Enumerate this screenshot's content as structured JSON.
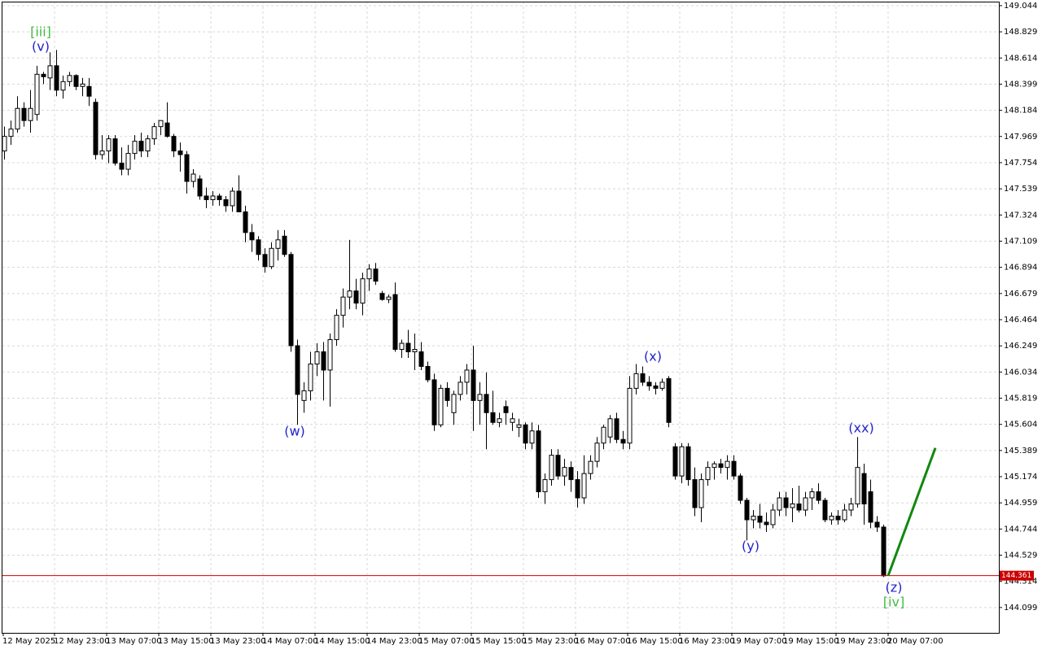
{
  "chart_data": {
    "type": "candlestick",
    "ylim": [
      143.891,
      149.077
    ],
    "yticks": [
      149.044,
      148.829,
      148.614,
      148.399,
      148.184,
      147.969,
      147.754,
      147.539,
      147.324,
      147.109,
      146.894,
      146.679,
      146.464,
      146.249,
      146.034,
      145.819,
      145.604,
      145.389,
      145.174,
      144.959,
      144.744,
      144.529,
      144.314,
      144.099
    ],
    "grid": true,
    "x_labels": [
      "12 May 2025",
      "12 May 23:00",
      "13 May 07:00",
      "13 May 15:00",
      "13 May 23:00",
      "14 May 07:00",
      "14 May 15:00",
      "14 May 23:00",
      "15 May 07:00",
      "15 May 15:00",
      "15 May 23:00",
      "16 May 07:00",
      "16 May 15:00",
      "16 May 23:00",
      "19 May 07:00",
      "19 May 15:00",
      "19 May 23:00",
      "20 May 07:00"
    ],
    "up_color": "#ffffff",
    "down_color": "#000000",
    "current_price": {
      "value": 144.361,
      "color": "#cc0000"
    },
    "projection": {
      "values": [
        144.36,
        145.41
      ],
      "color": "#118811"
    },
    "annotations": [
      {
        "text": "[iii]",
        "color": "#44bb44"
      },
      {
        "text": "(v)",
        "color": "#2222cc"
      },
      {
        "text": "(w)",
        "color": "#2222cc"
      },
      {
        "text": "(x)",
        "color": "#2222cc"
      },
      {
        "text": "(y)",
        "color": "#2222cc"
      },
      {
        "text": "(xx)",
        "color": "#2222cc"
      },
      {
        "text": "(z)",
        "color": "#2222cc"
      },
      {
        "text": "[iv]",
        "color": "#44bb44"
      }
    ],
    "ohlc": [
      [
        147.85,
        148.05,
        147.78,
        147.97
      ],
      [
        147.97,
        148.1,
        147.9,
        148.03
      ],
      [
        148.03,
        148.3,
        148.0,
        148.2
      ],
      [
        148.2,
        148.25,
        148.05,
        148.1
      ],
      [
        148.1,
        148.35,
        148.0,
        148.2
      ],
      [
        148.15,
        148.55,
        148.1,
        148.48
      ],
      [
        148.48,
        148.5,
        148.4,
        148.46
      ],
      [
        148.45,
        148.66,
        148.35,
        148.55
      ],
      [
        148.55,
        148.68,
        148.3,
        148.35
      ],
      [
        148.35,
        148.47,
        148.28,
        148.42
      ],
      [
        148.42,
        148.5,
        148.38,
        148.47
      ],
      [
        148.47,
        148.48,
        148.35,
        148.38
      ],
      [
        148.38,
        148.45,
        148.3,
        148.4
      ],
      [
        148.38,
        148.45,
        148.22,
        148.3
      ],
      [
        148.25,
        148.28,
        147.78,
        147.82
      ],
      [
        147.82,
        147.98,
        147.78,
        147.85
      ],
      [
        147.85,
        147.98,
        147.75,
        147.95
      ],
      [
        147.95,
        147.98,
        147.73,
        147.75
      ],
      [
        147.75,
        147.88,
        147.65,
        147.7
      ],
      [
        147.7,
        147.9,
        147.65,
        147.83
      ],
      [
        147.83,
        147.98,
        147.78,
        147.93
      ],
      [
        147.93,
        148.0,
        147.8,
        147.85
      ],
      [
        147.85,
        147.98,
        147.8,
        147.95
      ],
      [
        147.95,
        148.08,
        147.9,
        148.05
      ],
      [
        148.05,
        148.1,
        147.98,
        148.1
      ],
      [
        148.08,
        148.25,
        147.96,
        147.97
      ],
      [
        147.97,
        147.99,
        147.8,
        147.85
      ],
      [
        147.85,
        147.92,
        147.68,
        147.82
      ],
      [
        147.82,
        147.85,
        147.5,
        147.6
      ],
      [
        147.6,
        147.7,
        147.55,
        147.66
      ],
      [
        147.62,
        147.65,
        147.45,
        147.48
      ],
      [
        147.48,
        147.55,
        147.38,
        147.45
      ],
      [
        147.45,
        147.52,
        147.4,
        147.48
      ],
      [
        147.48,
        147.5,
        147.4,
        147.45
      ],
      [
        147.45,
        147.48,
        147.35,
        147.4
      ],
      [
        147.4,
        147.55,
        147.35,
        147.52
      ],
      [
        147.52,
        147.65,
        147.35,
        147.35
      ],
      [
        147.35,
        147.4,
        147.1,
        147.18
      ],
      [
        147.18,
        147.25,
        147.02,
        147.12
      ],
      [
        147.12,
        147.15,
        146.95,
        147.0
      ],
      [
        147.0,
        147.05,
        146.85,
        146.9
      ],
      [
        146.9,
        147.1,
        146.88,
        147.05
      ],
      [
        147.05,
        147.2,
        146.95,
        147.12
      ],
      [
        147.15,
        147.2,
        146.98,
        147.0
      ],
      [
        147.0,
        147.02,
        146.2,
        146.25
      ],
      [
        146.25,
        146.3,
        145.6,
        145.85
      ],
      [
        145.8,
        145.95,
        145.7,
        145.88
      ],
      [
        145.88,
        146.2,
        145.8,
        146.1
      ],
      [
        146.1,
        146.27,
        146.0,
        146.2
      ],
      [
        146.2,
        146.28,
        145.8,
        146.05
      ],
      [
        146.05,
        146.35,
        145.75,
        146.3
      ],
      [
        146.3,
        146.55,
        146.25,
        146.5
      ],
      [
        146.5,
        146.72,
        146.4,
        146.65
      ],
      [
        146.65,
        147.12,
        146.55,
        146.7
      ],
      [
        146.7,
        146.8,
        146.55,
        146.6
      ],
      [
        146.6,
        146.85,
        146.5,
        146.8
      ],
      [
        146.8,
        146.92,
        146.7,
        146.88
      ],
      [
        146.88,
        146.93,
        146.75,
        146.78
      ],
      [
        146.68,
        146.7,
        146.62,
        146.63
      ],
      [
        146.63,
        146.67,
        146.6,
        146.65
      ],
      [
        146.67,
        146.77,
        146.2,
        146.22
      ],
      [
        146.22,
        146.3,
        146.15,
        146.27
      ],
      [
        146.27,
        146.38,
        146.15,
        146.2
      ],
      [
        146.2,
        146.35,
        146.05,
        146.22
      ],
      [
        146.2,
        146.28,
        146.05,
        146.08
      ],
      [
        146.08,
        146.12,
        145.95,
        145.97
      ],
      [
        145.97,
        146.02,
        145.55,
        145.6
      ],
      [
        145.6,
        145.93,
        145.58,
        145.9
      ],
      [
        145.9,
        145.95,
        145.75,
        145.8
      ],
      [
        145.7,
        145.88,
        145.6,
        145.85
      ],
      [
        145.85,
        146.0,
        145.8,
        145.95
      ],
      [
        145.95,
        146.1,
        145.85,
        146.05
      ],
      [
        146.05,
        146.25,
        145.55,
        145.8
      ],
      [
        145.8,
        145.95,
        145.6,
        145.85
      ],
      [
        145.85,
        146.03,
        145.4,
        145.7
      ],
      [
        145.7,
        145.88,
        145.6,
        145.62
      ],
      [
        145.62,
        145.7,
        145.58,
        145.65
      ],
      [
        145.75,
        145.8,
        145.6,
        145.7
      ],
      [
        145.62,
        145.7,
        145.55,
        145.65
      ],
      [
        145.58,
        145.65,
        145.5,
        145.6
      ],
      [
        145.6,
        145.62,
        145.4,
        145.45
      ],
      [
        145.45,
        145.62,
        145.4,
        145.55
      ],
      [
        145.55,
        145.6,
        145.0,
        145.05
      ],
      [
        145.05,
        145.2,
        144.95,
        145.15
      ],
      [
        145.15,
        145.4,
        145.1,
        145.35
      ],
      [
        145.35,
        145.4,
        145.15,
        145.18
      ],
      [
        145.18,
        145.32,
        145.1,
        145.25
      ],
      [
        145.25,
        145.3,
        145.05,
        145.15
      ],
      [
        145.15,
        145.22,
        144.92,
        145.0
      ],
      [
        145.0,
        145.35,
        144.95,
        145.2
      ],
      [
        145.2,
        145.35,
        145.15,
        145.3
      ],
      [
        145.3,
        145.5,
        145.25,
        145.45
      ],
      [
        145.45,
        145.6,
        145.4,
        145.58
      ],
      [
        145.5,
        145.68,
        145.45,
        145.65
      ],
      [
        145.65,
        145.7,
        145.45,
        145.48
      ],
      [
        145.48,
        145.55,
        145.4,
        145.45
      ],
      [
        145.45,
        146.0,
        145.4,
        145.9
      ],
      [
        145.9,
        146.1,
        145.85,
        146.02
      ],
      [
        146.02,
        146.08,
        145.92,
        145.95
      ],
      [
        145.95,
        146.0,
        145.88,
        145.92
      ],
      [
        145.92,
        145.95,
        145.85,
        145.9
      ],
      [
        145.9,
        145.98,
        145.88,
        145.95
      ],
      [
        145.98,
        146.0,
        145.58,
        145.62
      ],
      [
        145.42,
        145.45,
        145.15,
        145.18
      ],
      [
        145.18,
        145.45,
        145.12,
        145.42
      ],
      [
        145.42,
        145.45,
        145.1,
        145.15
      ],
      [
        145.15,
        145.25,
        144.85,
        144.92
      ],
      [
        144.92,
        145.2,
        144.8,
        145.15
      ],
      [
        145.15,
        145.3,
        145.1,
        145.25
      ],
      [
        145.25,
        145.3,
        145.15,
        145.28
      ],
      [
        145.28,
        145.32,
        145.2,
        145.25
      ],
      [
        145.25,
        145.35,
        145.15,
        145.3
      ],
      [
        145.3,
        145.35,
        145.15,
        145.18
      ],
      [
        145.18,
        145.2,
        144.95,
        144.98
      ],
      [
        144.98,
        145.0,
        144.65,
        144.82
      ],
      [
        144.82,
        144.9,
        144.75,
        144.85
      ],
      [
        144.85,
        144.95,
        144.75,
        144.8
      ],
      [
        144.8,
        144.88,
        144.72,
        144.78
      ],
      [
        144.78,
        144.95,
        144.75,
        144.9
      ],
      [
        144.9,
        145.05,
        144.85,
        145.0
      ],
      [
        145.0,
        145.05,
        144.85,
        144.92
      ],
      [
        144.92,
        145.08,
        144.8,
        144.95
      ],
      [
        144.95,
        145.1,
        144.88,
        144.9
      ],
      [
        144.9,
        145.05,
        144.85,
        145.0
      ],
      [
        145.0,
        145.08,
        144.9,
        145.05
      ],
      [
        145.05,
        145.12,
        144.95,
        144.98
      ],
      [
        144.98,
        145.0,
        144.8,
        144.82
      ],
      [
        144.82,
        144.88,
        144.78,
        144.85
      ],
      [
        144.85,
        144.9,
        144.78,
        144.82
      ],
      [
        144.82,
        144.95,
        144.8,
        144.9
      ],
      [
        144.9,
        145.0,
        144.85,
        144.95
      ],
      [
        144.95,
        145.5,
        144.92,
        145.25
      ],
      [
        145.2,
        145.28,
        144.78,
        144.95
      ],
      [
        145.05,
        145.15,
        144.75,
        144.8
      ],
      [
        144.8,
        144.85,
        144.72,
        144.76
      ],
      [
        144.76,
        144.78,
        144.35,
        144.36
      ]
    ]
  }
}
